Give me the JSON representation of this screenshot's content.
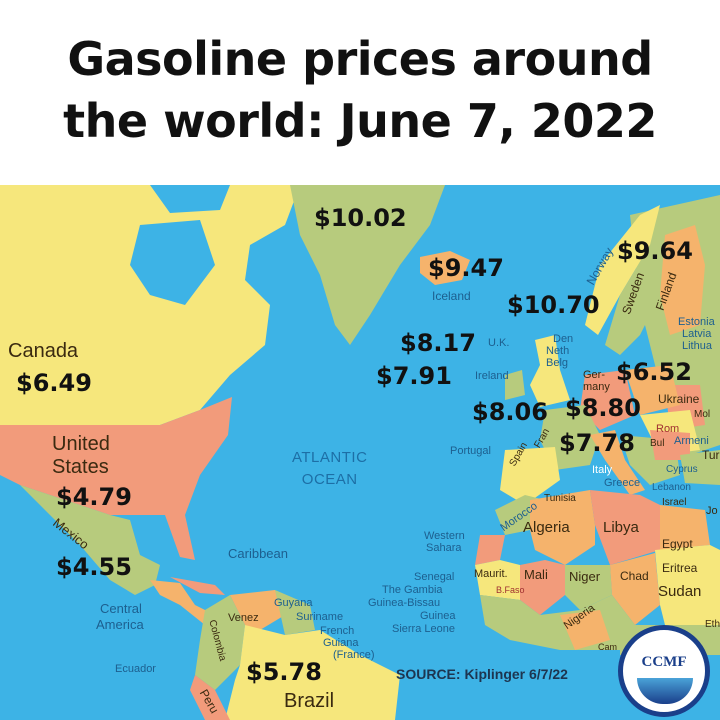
{
  "title": {
    "line1": "Gasoline prices around",
    "line2": "the world: June 7, 2022"
  },
  "colors": {
    "ocean": "#3db3e6",
    "yellow": "#f6e77c",
    "green": "#b7cb7d",
    "orange": "#f5b36c",
    "salmon": "#f29b7b"
  },
  "ocean_label": {
    "line1": "ATLANTIC",
    "line2": "OCEAN"
  },
  "prices": {
    "greenland": "$10.02",
    "iceland": "$9.47",
    "finland": "$9.64",
    "norway": "$10.70",
    "uk": "$8.17",
    "ireland": "$7.91",
    "poland": "$6.52",
    "france": "$8.06",
    "germany": "$8.80",
    "italy": "$7.78",
    "canada": "$6.49",
    "us": "$4.79",
    "mexico": "$4.55",
    "brazil": "$5.78"
  },
  "countries": {
    "canada": "Canada",
    "us_line1": "United",
    "us_line2": "States",
    "mexico": "Mexico",
    "central_america_1": "Central",
    "central_america_2": "America",
    "caribbean": "Caribbean",
    "colombia": "Colombia",
    "venez": "Venez",
    "guyana": "Guyana",
    "suriname": "Suriname",
    "french_guiana_1": "French",
    "french_guiana_2": "Guiana",
    "french_guiana_3": "(France)",
    "ecuador": "Ecuador",
    "peru": "Peru",
    "brazil": "Brazil",
    "iceland": "Iceland",
    "norway": "Norway",
    "sweden": "Sweden",
    "finland": "Finland",
    "estonia": "Estonia",
    "latvia": "Latvia",
    "lithuania": "Lithua",
    "uk": "U.K.",
    "ireland": "Ireland",
    "denmark": "Den",
    "netherlands": "Neth",
    "belgium": "Belg",
    "germany_1": "Ger-",
    "germany_2": "many",
    "ukraine": "Ukraine",
    "moldova": "Mol",
    "romania": "Rom",
    "bulgaria": "Bul",
    "armenia": "Armeni",
    "turkey": "Turk",
    "cyprus": "Cyprus",
    "greece": "Greece",
    "lebanon": "Lebanon",
    "israel": "Israel",
    "jordan": "Jo",
    "portugal": "Portugal",
    "spain": "Spain",
    "france": "Fran",
    "italy": "Italy",
    "morocco": "Morocco",
    "tunisia": "Tunisia",
    "western_sahara_1": "Western",
    "western_sahara_2": "Sahara",
    "algeria": "Algeria",
    "libya": "Libya",
    "egypt": "Egypt",
    "mauritania": "Maurit.",
    "mali": "Mali",
    "niger": "Niger",
    "chad": "Chad",
    "sudan": "Sudan",
    "eritrea": "Eritrea",
    "senegal": "Senegal",
    "gambia": "The Gambia",
    "guinea_bissau": "Guinea-Bissau",
    "guinea": "Guinea",
    "sierra_leone": "Sierra Leone",
    "burkina_faso": "B.Faso",
    "nigeria": "Nigeria",
    "cameroon": "Cam",
    "ethiopia": "Eth"
  },
  "source": "SOURCE: Kiplinger 6/7/22",
  "logo": "CCMF"
}
